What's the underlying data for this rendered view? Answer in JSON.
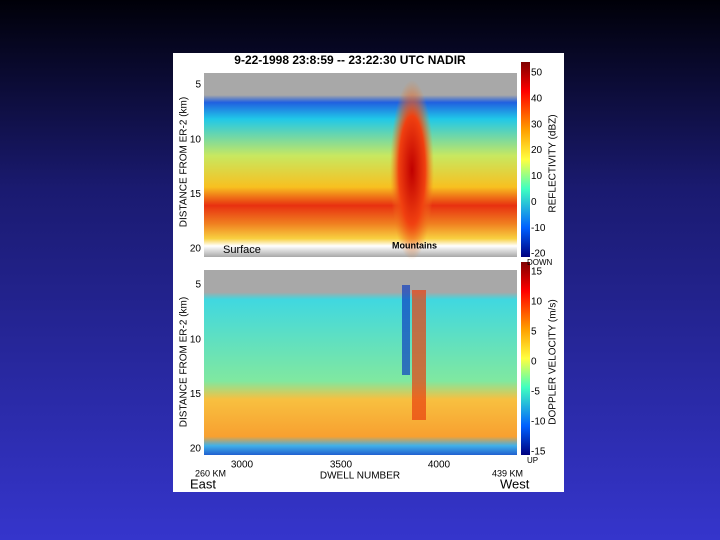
{
  "slide": {
    "title": "9-22-1998  23:8:59 -- 23:22:30 UTC  NADIR",
    "panels": [
      {
        "y_axis_label": "DISTANCE FROM ER-2 (km)",
        "y_ticks": [
          5,
          10,
          15,
          20
        ],
        "colorbar_label": "REFLECTIVITY (dBZ)",
        "colorbar_ticks": [
          50,
          40,
          30,
          20,
          10,
          0,
          -10,
          -20
        ],
        "colorbar_bottom_label": "DOWN",
        "annotations": [
          "Surface",
          "Mountains"
        ]
      },
      {
        "y_axis_label": "DISTANCE FROM ER-2 (km)",
        "y_ticks": [
          5,
          10,
          15,
          20
        ],
        "colorbar_label": "DOPPLER VELOCITY (m/s)",
        "colorbar_ticks": [
          15,
          10,
          5,
          0,
          -5,
          -10,
          -15
        ],
        "colorbar_bottom_label": "UP"
      }
    ],
    "x_axis": {
      "label": "DWELL NUMBER",
      "ticks": [
        3000,
        3500,
        4000
      ],
      "left_distance": "260 KM",
      "right_distance": "439 KM",
      "left_direction": "East",
      "right_direction": "West"
    }
  }
}
